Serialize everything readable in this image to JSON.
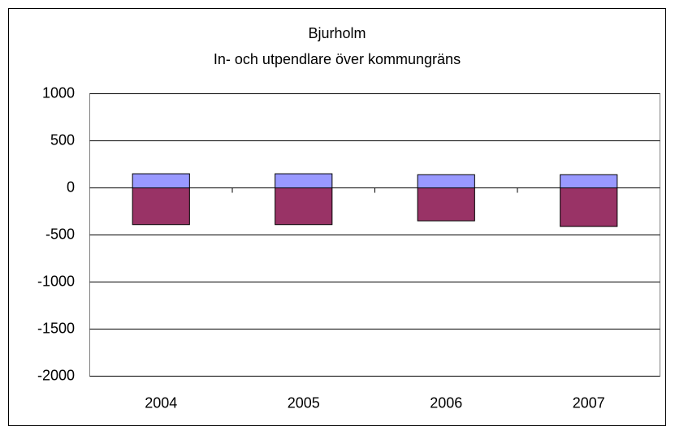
{
  "chart_data": {
    "type": "bar",
    "stacked": true,
    "title": "Bjurholm",
    "subtitle": "In- och utpendlare över kommungräns",
    "categories": [
      "2004",
      "2005",
      "2006",
      "2007"
    ],
    "series": [
      {
        "color": "#9999ff",
        "values": [
          150,
          150,
          140,
          140
        ]
      },
      {
        "color": "#993366",
        "values": [
          -390,
          -390,
          -350,
          -410
        ]
      }
    ],
    "ylim": [
      -2000,
      1000
    ],
    "yticks": [
      -2000,
      -1500,
      -1000,
      -500,
      0,
      500,
      1000
    ],
    "grid": true
  }
}
